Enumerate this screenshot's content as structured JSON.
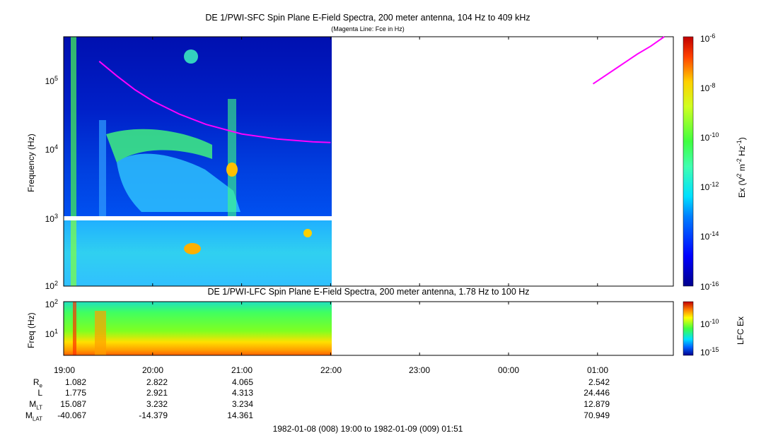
{
  "chart_data": [
    {
      "type": "heatmap",
      "title": "DE 1/PWI-SFC  Spin Plane E-Field Spectra, 200 meter antenna, 104 Hz to 409 kHz",
      "subtitle": "(Magenta Line: Fce in Hz)",
      "ylabel": "Frequency (Hz)",
      "y_scale": "log",
      "ylim": [
        100,
        409000
      ],
      "yticks": [
        "10^2",
        "10^3",
        "10^4",
        "10^5"
      ],
      "x_range": [
        "19:00",
        "01:51"
      ],
      "data_end_time": "22:00",
      "colorbar": {
        "label": "Ex (V^2 m^-2 Hz^-1)",
        "scale": "log",
        "range": [
          "10^-16",
          "10^-6"
        ],
        "ticks": [
          "10^-16",
          "10^-14",
          "10^-12",
          "10^-10",
          "10^-8",
          "10^-6"
        ]
      },
      "overlay_line": {
        "name": "Fce",
        "color": "#ff00ff",
        "segment1": {
          "t_hours": [
            19.4,
            19.6,
            19.8,
            20.0,
            20.3,
            20.6,
            21.0,
            21.4,
            21.8,
            22.0
          ],
          "freq_hz": [
            180000,
            110000,
            70000,
            48000,
            31000,
            22000,
            16000,
            13500,
            12300,
            12000
          ]
        },
        "segment2": {
          "t_hours": [
            24.95,
            25.2,
            25.45,
            25.6,
            25.75
          ],
          "freq_hz": [
            85000,
            140000,
            230000,
            300000,
            409000
          ]
        }
      }
    },
    {
      "type": "heatmap",
      "title": "DE 1/PWI-LFC  Spin Plane E-Field Spectra, 200 meter antenna, 1.78 Hz to 100 Hz",
      "ylabel": "Freq (Hz)",
      "y_scale": "log",
      "ylim": [
        1.78,
        100
      ],
      "yticks": [
        "10^1",
        "10^2"
      ],
      "x_range": [
        "19:00",
        "01:51"
      ],
      "data_end_time": "22:00",
      "colorbar": {
        "label": "LFC Ex",
        "scale": "log",
        "ticks": [
          "10^-15",
          "10^-10"
        ]
      }
    }
  ],
  "xticks": [
    "19:00",
    "20:00",
    "21:00",
    "22:00",
    "23:00",
    "00:00",
    "01:00"
  ],
  "ephemeris": {
    "labels": [
      {
        "main": "R",
        "sub": "e"
      },
      {
        "main": "L",
        "sub": ""
      },
      {
        "main": "M",
        "sub": "LT"
      },
      {
        "main": "M",
        "sub": "LAT"
      }
    ],
    "columns": [
      {
        "time": "19:00",
        "values": [
          "1.082",
          "1.775",
          "15.087",
          "-40.067"
        ]
      },
      {
        "time": "20:00",
        "values": [
          "2.822",
          "2.921",
          "3.232",
          "-14.379"
        ]
      },
      {
        "time": "21:00",
        "values": [
          "4.065",
          "4.313",
          "3.234",
          "14.361"
        ]
      },
      {
        "time": "01:00",
        "values": [
          "2.542",
          "24.446",
          "12.879",
          "70.949"
        ]
      }
    ]
  },
  "footer": "1982-01-08 (008) 19:00 to 1982-01-09 (009) 01:51",
  "colors": {
    "overlay": "#ff00ff",
    "panel_border": "#000000"
  }
}
